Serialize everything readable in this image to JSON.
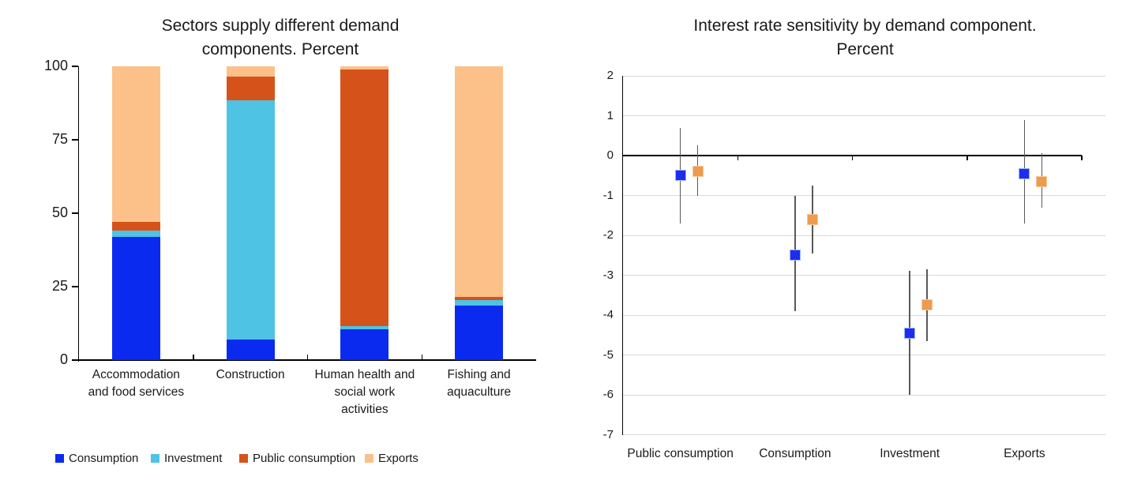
{
  "page": {
    "background": "#ffffff"
  },
  "chart_data": [
    {
      "id": "sectors-demand-stacked-bar",
      "type": "bar",
      "stacked": true,
      "title_lines": [
        "Sectors supply different demand",
        "components. Percent"
      ],
      "categories": [
        "Accommodation and food services",
        "Construction",
        "Human health and social work activities",
        "Fishing and aquaculture"
      ],
      "category_label_lines": [
        [
          "Accommodation",
          "and food services"
        ],
        [
          "Construction"
        ],
        [
          "Human health and",
          "social work",
          "activities"
        ],
        [
          "Fishing and",
          "aquaculture"
        ]
      ],
      "series": [
        {
          "name": "Consumption",
          "color": "#0a2af0",
          "values": [
            42,
            7,
            10.5,
            18.5
          ]
        },
        {
          "name": "Investment",
          "color": "#4ec3e3",
          "values": [
            2,
            81.5,
            1,
            2
          ]
        },
        {
          "name": "Public consumption",
          "color": "#d5531a",
          "values": [
            3,
            8,
            87.5,
            1
          ]
        },
        {
          "name": "Exports",
          "color": "#fbc189",
          "values": [
            53,
            3.5,
            1,
            78.5
          ]
        }
      ],
      "ylim": [
        0,
        100
      ],
      "yticks": [
        0,
        25,
        50,
        75,
        100
      ],
      "grid": false,
      "legend_position": "bottom"
    },
    {
      "id": "interest-rate-sensitivity-scatter",
      "type": "scatter",
      "title_lines": [
        "Interest rate sensitivity by demand component.",
        "Percent"
      ],
      "categories": [
        "Public consumption",
        "Consumption",
        "Investment",
        "Exports"
      ],
      "ylim": [
        -7,
        2
      ],
      "yticks": [
        2,
        1,
        0,
        -1,
        -2,
        -3,
        -4,
        -5,
        -6,
        -7
      ],
      "grid": true,
      "legend_position": "none",
      "series": [
        {
          "name": "blue",
          "marker": "square",
          "color": "#1c2df0",
          "marker_border": "#9db5f8",
          "error_bar_color": "#595959",
          "points": [
            {
              "category": "Public consumption",
              "y": -0.5,
              "err_high": 0.7,
              "err_low": -1.7
            },
            {
              "category": "Consumption",
              "y": -2.5,
              "err_high": -1.0,
              "err_low": -3.9
            },
            {
              "category": "Investment",
              "y": -4.45,
              "err_high": -2.9,
              "err_low": -6.0
            },
            {
              "category": "Exports",
              "y": -0.45,
              "err_high": 0.9,
              "err_low": -1.7
            }
          ]
        },
        {
          "name": "orange",
          "marker": "square",
          "color": "#ee9a4f",
          "marker_border": "#f6c89b",
          "error_bar_color": "#595959",
          "points": [
            {
              "category": "Public consumption",
              "y": -0.4,
              "err_high": 0.25,
              "err_low": -1.0
            },
            {
              "category": "Consumption",
              "y": -1.6,
              "err_high": -0.75,
              "err_low": -2.45
            },
            {
              "category": "Investment",
              "y": -3.75,
              "err_high": -2.85,
              "err_low": -4.65
            },
            {
              "category": "Exports",
              "y": -0.65,
              "err_high": 0.05,
              "err_low": -1.3
            }
          ]
        }
      ]
    }
  ]
}
